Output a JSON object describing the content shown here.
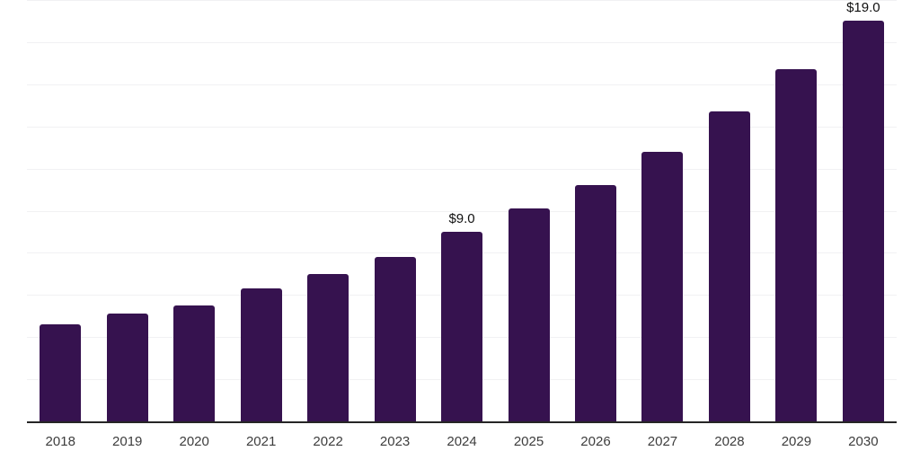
{
  "chart_data": {
    "type": "bar",
    "title": "",
    "xlabel": "",
    "ylabel": "",
    "categories": [
      "2018",
      "2019",
      "2020",
      "2021",
      "2022",
      "2023",
      "2024",
      "2025",
      "2026",
      "2027",
      "2028",
      "2029",
      "2030"
    ],
    "values": [
      4.6,
      5.1,
      5.5,
      6.3,
      7.0,
      7.8,
      9.0,
      10.1,
      11.2,
      12.8,
      14.7,
      16.7,
      19.0
    ],
    "data_labels": [
      "",
      "",
      "",
      "",
      "",
      "",
      "$9.0",
      "",
      "",
      "",
      "",
      "",
      "$19.0"
    ],
    "ylim": [
      0,
      20
    ],
    "grid_step": 2,
    "grid": "horizontal-only",
    "legend_position": "none",
    "colors": {
      "bar": "#36124F",
      "grid": "#F1F1F3",
      "axis": "#262626",
      "tick_label": "#3D3D3D",
      "data_label": "#101010",
      "background": "#FFFFFF"
    }
  }
}
